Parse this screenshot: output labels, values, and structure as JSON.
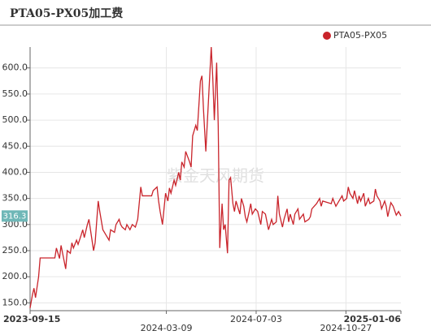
{
  "chart_data": {
    "type": "line",
    "title": "PTA05-PX05加工费",
    "watermark": "紫金天风期货",
    "x": [
      "2023-09-15",
      "2023-09-18",
      "2023-09-20",
      "2023-09-22",
      "2023-09-26",
      "2023-09-28",
      "2023-10-10",
      "2023-10-17",
      "2023-10-19",
      "2023-10-23",
      "2023-10-25",
      "2023-10-27",
      "2023-10-31",
      "2023-11-02",
      "2023-11-06",
      "2023-11-08",
      "2023-11-10",
      "2023-11-14",
      "2023-11-16",
      "2023-11-20",
      "2023-11-22",
      "2023-11-24",
      "2023-11-28",
      "2023-11-30",
      "2023-12-04",
      "2023-12-06",
      "2023-12-08",
      "2023-12-12",
      "2023-12-14",
      "2023-12-18",
      "2023-12-20",
      "2023-12-22",
      "2023-12-26",
      "2023-12-28",
      "2024-01-02",
      "2024-01-04",
      "2024-01-08",
      "2024-01-10",
      "2024-01-12",
      "2024-01-16",
      "2024-01-18",
      "2024-01-22",
      "2024-01-25",
      "2024-01-29",
      "2024-02-01",
      "2024-02-05",
      "2024-02-07",
      "2024-02-19",
      "2024-02-21",
      "2024-02-26",
      "2024-02-28",
      "2024-03-01",
      "2024-03-04",
      "2024-03-06",
      "2024-03-08",
      "2024-03-11",
      "2024-03-13",
      "2024-03-15",
      "2024-03-19",
      "2024-03-21",
      "2024-03-25",
      "2024-03-27",
      "2024-03-29",
      "2024-04-01",
      "2024-04-03",
      "2024-04-08",
      "2024-04-10",
      "2024-04-12",
      "2024-04-16",
      "2024-04-18",
      "2024-04-22",
      "2024-04-24",
      "2024-04-26",
      "2024-04-29",
      "2024-05-06",
      "2024-05-08",
      "2024-05-10",
      "2024-05-13",
      "2024-05-15",
      "2024-05-17",
      "2024-05-20",
      "2024-05-22",
      "2024-05-24",
      "2024-05-27",
      "2024-05-29",
      "2024-05-31",
      "2024-06-03",
      "2024-06-05",
      "2024-06-07",
      "2024-06-12",
      "2024-06-14",
      "2024-06-17",
      "2024-06-19",
      "2024-06-21",
      "2024-06-24",
      "2024-06-26",
      "2024-06-28",
      "2024-07-02",
      "2024-07-05",
      "2024-07-09",
      "2024-07-11",
      "2024-07-15",
      "2024-07-17",
      "2024-07-19",
      "2024-07-23",
      "2024-07-25",
      "2024-07-29",
      "2024-07-31",
      "2024-08-02",
      "2024-08-06",
      "2024-08-08",
      "2024-08-12",
      "2024-08-14",
      "2024-08-16",
      "2024-08-20",
      "2024-08-22",
      "2024-08-26",
      "2024-08-28",
      "2024-09-02",
      "2024-09-04",
      "2024-09-09",
      "2024-09-11",
      "2024-09-13",
      "2024-09-19",
      "2024-09-23",
      "2024-09-25",
      "2024-09-27",
      "2024-10-08",
      "2024-10-10",
      "2024-10-14",
      "2024-10-16",
      "2024-10-18",
      "2024-10-22",
      "2024-10-24",
      "2024-10-28",
      "2024-10-30",
      "2024-11-01",
      "2024-11-05",
      "2024-11-07",
      "2024-11-11",
      "2024-11-13",
      "2024-11-15",
      "2024-11-19",
      "2024-11-21",
      "2024-11-25",
      "2024-11-27",
      "2024-12-02",
      "2024-12-04",
      "2024-12-06",
      "2024-12-10",
      "2024-12-12",
      "2024-12-16",
      "2024-12-18",
      "2024-12-20",
      "2024-12-24",
      "2024-12-27",
      "2024-12-31",
      "2025-01-03",
      "2025-01-06"
    ],
    "series": [
      {
        "name": "PTA05-PX05",
        "color": "#c9242b",
        "values": [
          140,
          165,
          178,
          160,
          200,
          236,
          236,
          236,
          255,
          235,
          260,
          245,
          215,
          250,
          245,
          265,
          255,
          270,
          262,
          280,
          290,
          275,
          300,
          310,
          270,
          250,
          265,
          345,
          325,
          290,
          285,
          280,
          270,
          290,
          285,
          300,
          310,
          300,
          295,
          290,
          300,
          290,
          300,
          295,
          310,
          372,
          355,
          355,
          365,
          372,
          345,
          325,
          300,
          330,
          360,
          345,
          370,
          360,
          385,
          375,
          400,
          385,
          420,
          410,
          440,
          420,
          410,
          470,
          490,
          480,
          575,
          585,
          520,
          440,
          640,
          580,
          500,
          610,
          490,
          255,
          340,
          290,
          300,
          245,
          385,
          390,
          340,
          325,
          345,
          320,
          350,
          335,
          315,
          305,
          325,
          340,
          320,
          330,
          325,
          300,
          325,
          320,
          305,
          290,
          310,
          300,
          305,
          355,
          320,
          295,
          310,
          330,
          305,
          320,
          300,
          320,
          330,
          310,
          320,
          305,
          310,
          315,
          330,
          340,
          350,
          335,
          345,
          340,
          350,
          335,
          340,
          345,
          355,
          345,
          350,
          372,
          360,
          350,
          365,
          340,
          355,
          345,
          360,
          335,
          350,
          340,
          345,
          368,
          355,
          345,
          330,
          345,
          335,
          315,
          342,
          335,
          318,
          325,
          316.3
        ]
      }
    ],
    "xlim": [
      "2023-09-15",
      "2025-01-06"
    ],
    "xticks": [
      "2023-09-15",
      "2024-03-09",
      "2024-07-03",
      "2024-10-27",
      "2025-01-06"
    ],
    "ylim": [
      135,
      640
    ],
    "yticks": [
      {
        "value": 150,
        "label": "150.0"
      },
      {
        "value": 200,
        "label": "200.0"
      },
      {
        "value": 250,
        "label": "250.0"
      },
      {
        "value": 300,
        "label": "300.0"
      },
      {
        "value": 350,
        "label": "350.0"
      },
      {
        "value": 400,
        "label": "400.0"
      },
      {
        "value": 450,
        "label": "450.0"
      },
      {
        "value": 500,
        "label": "500.0"
      },
      {
        "value": 550,
        "label": "550.0"
      },
      {
        "value": 600,
        "label": "600.0"
      }
    ],
    "grid": true
  }
}
